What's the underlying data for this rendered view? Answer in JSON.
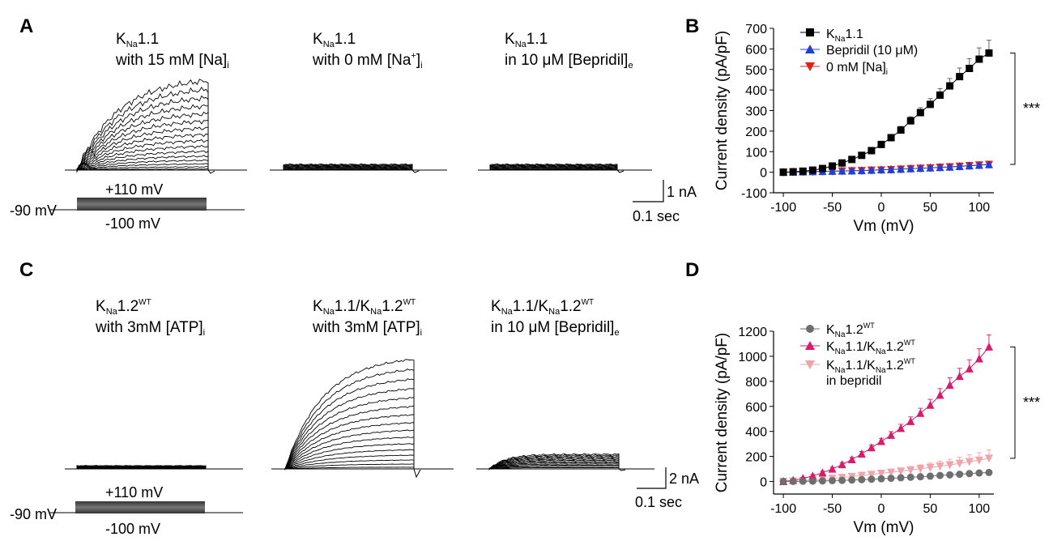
{
  "panels": {
    "A": {
      "letter": "A",
      "traces": [
        {
          "name_main": "K",
          "name_sub": "Na",
          "name_rest": "1.1",
          "cond_pre": "with 15 mM [Na]",
          "cond_sub": "i",
          "cond_sup": ""
        },
        {
          "name_main": "K",
          "name_sub": "Na",
          "name_rest": "1.1",
          "cond_pre": "with 0 mM [Na",
          "cond_sup": "+",
          "cond_post": "]",
          "cond_sub": "i"
        },
        {
          "name_main": "K",
          "name_sub": "Na",
          "name_rest": "1.1",
          "cond_pre": "in 10 μM [Bepridil]",
          "cond_sub": "e",
          "cond_sup": ""
        }
      ],
      "protocol": {
        "hold": "-90 mV",
        "top": "+110 mV",
        "bottom": "-100 mV"
      },
      "scale": {
        "current": "1 nA",
        "time": "0.1 sec"
      }
    },
    "C": {
      "letter": "C",
      "traces": [
        {
          "line1": "KNa1.2WT",
          "cond_pre": "with 3mM [ATP]",
          "cond_sub": "i"
        },
        {
          "line1": "KNa1.1/KNa1.2WT",
          "cond_pre": "with 3mM [ATP]",
          "cond_sub": "i"
        },
        {
          "line1": "KNa1.1/KNa1.2WT",
          "cond_pre": "in 10 μM [Bepridil]",
          "cond_sub": "e"
        }
      ],
      "protocol": {
        "hold": "-90 mV",
        "top": "+110 mV",
        "bottom": "-100 mV"
      },
      "scale": {
        "current": "2 nA",
        "time": "0.1 sec"
      }
    }
  },
  "chart_data": [
    {
      "panel": "B",
      "type": "line",
      "xlabel": "Vm (mV)",
      "ylabel": "Current density (pA/pF)",
      "xlim": [
        -110,
        115
      ],
      "ylim": [
        -100,
        700
      ],
      "xticks": [
        -100,
        -50,
        0,
        50,
        100
      ],
      "yticks": [
        -100,
        0,
        100,
        200,
        300,
        400,
        500,
        600,
        700
      ],
      "significance": "***",
      "x": [
        -100,
        -90,
        -80,
        -70,
        -60,
        -50,
        -40,
        -30,
        -20,
        -10,
        0,
        10,
        20,
        30,
        40,
        50,
        60,
        70,
        80,
        90,
        100,
        110
      ],
      "series": [
        {
          "name": "KNa1.1",
          "marker": "square",
          "color": "#000000",
          "values": [
            0,
            2,
            5,
            10,
            18,
            30,
            45,
            62,
            82,
            105,
            135,
            168,
            205,
            250,
            290,
            330,
            375,
            420,
            465,
            505,
            550,
            580
          ],
          "errors": [
            5,
            5,
            6,
            6,
            7,
            8,
            9,
            10,
            11,
            12,
            14,
            16,
            18,
            20,
            24,
            28,
            32,
            36,
            42,
            48,
            55,
            62
          ]
        },
        {
          "name": "Bepridil (10 μM)",
          "marker": "triangle-up",
          "color": "#1f3fd6",
          "values": [
            0,
            1,
            2,
            3,
            4,
            5,
            6,
            7,
            8,
            10,
            12,
            13,
            15,
            17,
            19,
            21,
            23,
            25,
            28,
            31,
            34,
            37
          ],
          "errors": [
            2,
            2,
            2,
            2,
            2,
            3,
            3,
            3,
            3,
            3,
            4,
            4,
            4,
            4,
            5,
            5,
            5,
            6,
            6,
            6,
            7,
            7
          ]
        },
        {
          "name": "0 mM [Na]i",
          "marker": "triangle-down",
          "color": "#e0221c",
          "values": [
            0,
            1,
            2,
            3,
            4,
            5,
            6,
            7,
            8,
            10,
            11,
            13,
            15,
            17,
            19,
            21,
            24,
            26,
            29,
            32,
            35,
            38
          ],
          "errors": [
            2,
            2,
            2,
            2,
            2,
            3,
            3,
            3,
            3,
            3,
            4,
            4,
            4,
            4,
            5,
            5,
            5,
            6,
            6,
            6,
            7,
            7
          ]
        }
      ]
    },
    {
      "panel": "D",
      "type": "line",
      "xlabel": "Vm (mV)",
      "ylabel": "Current density (pA/pF)",
      "xlim": [
        -110,
        115
      ],
      "ylim": [
        -100,
        1200
      ],
      "xticks": [
        -100,
        -50,
        0,
        50,
        100
      ],
      "yticks": [
        0,
        200,
        400,
        600,
        800,
        1000,
        1200
      ],
      "significance": "***",
      "x": [
        -100,
        -90,
        -80,
        -70,
        -60,
        -50,
        -40,
        -30,
        -20,
        -10,
        0,
        10,
        20,
        30,
        40,
        50,
        60,
        70,
        80,
        90,
        100,
        110
      ],
      "series": [
        {
          "name": "KNa1.2WT",
          "marker": "circle",
          "color": "#6e6e6e",
          "values": [
            0,
            1,
            2,
            3,
            5,
            7,
            9,
            12,
            15,
            18,
            22,
            26,
            30,
            34,
            38,
            43,
            48,
            53,
            58,
            63,
            68,
            72
          ],
          "errors": [
            2,
            2,
            2,
            3,
            3,
            3,
            4,
            4,
            4,
            5,
            5,
            5,
            6,
            6,
            6,
            7,
            7,
            8,
            8,
            9,
            9,
            10
          ]
        },
        {
          "name": "KNa1.1/KNa1.2WT",
          "marker": "triangle-up",
          "color": "#d81b6a",
          "values": [
            0,
            10,
            25,
            45,
            70,
            100,
            135,
            175,
            220,
            270,
            320,
            370,
            425,
            480,
            545,
            610,
            690,
            770,
            840,
            900,
            980,
            1075
          ],
          "errors": [
            5,
            6,
            8,
            10,
            12,
            14,
            16,
            18,
            20,
            22,
            25,
            28,
            32,
            36,
            40,
            46,
            52,
            58,
            64,
            72,
            80,
            95
          ]
        },
        {
          "name": "KNa1.1/KNa1.2WT in bepridil",
          "marker": "triangle-down",
          "color": "#f0a3a8",
          "values": [
            0,
            3,
            7,
            12,
            18,
            25,
            32,
            40,
            48,
            56,
            65,
            74,
            83,
            92,
            102,
            112,
            122,
            133,
            145,
            158,
            170,
            185
          ],
          "errors": [
            3,
            4,
            5,
            6,
            8,
            10,
            12,
            14,
            16,
            18,
            20,
            22,
            25,
            28,
            31,
            35,
            40,
            45,
            50,
            55,
            60,
            66
          ]
        }
      ]
    }
  ]
}
